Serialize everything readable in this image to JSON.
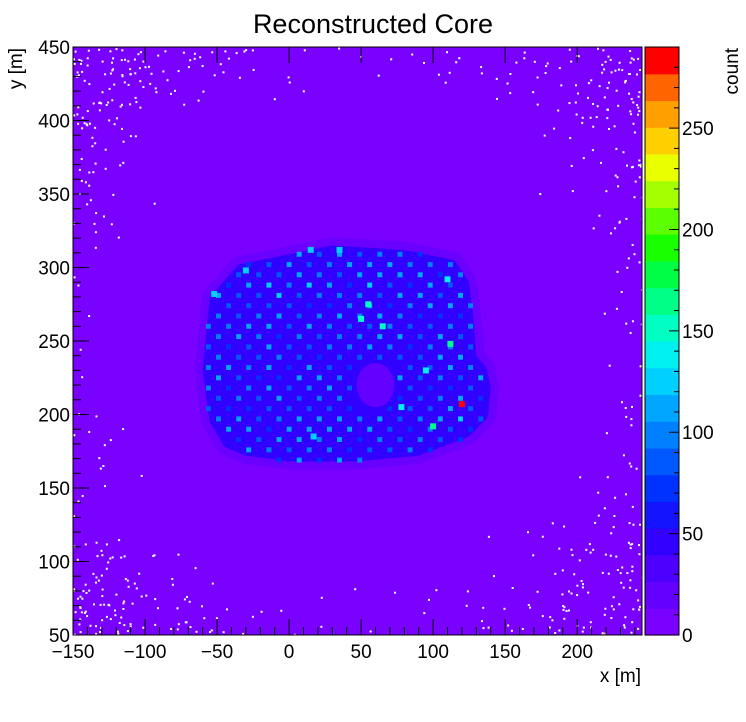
{
  "chart_data": {
    "type": "heatmap",
    "title": "Reconstructed Core",
    "xlabel": "x [m]",
    "ylabel": "y [m]",
    "zlabel": "count",
    "xlim": [
      -150,
      245
    ],
    "ylim": [
      50,
      450
    ],
    "zlim": [
      0,
      290
    ],
    "x_ticks": [
      -150,
      -100,
      -50,
      0,
      50,
      100,
      150,
      200
    ],
    "y_ticks": [
      50,
      100,
      150,
      200,
      250,
      300,
      350,
      400,
      450
    ],
    "z_ticks": [
      0,
      50,
      100,
      150,
      200,
      250
    ],
    "x_tick_labels": [
      "−150",
      "−100",
      "−50",
      "0",
      "50",
      "100",
      "150",
      "200"
    ],
    "y_tick_labels": [
      "50",
      "100",
      "150",
      "200",
      "250",
      "300",
      "350",
      "400",
      "450"
    ],
    "z_tick_labels": [
      "0",
      "50",
      "100",
      "150",
      "200",
      "250"
    ],
    "background_count": 3,
    "array_footprint_polygon": [
      [
        -55,
        280
      ],
      [
        -35,
        302
      ],
      [
        30,
        315
      ],
      [
        80,
        312
      ],
      [
        115,
        305
      ],
      [
        125,
        290
      ],
      [
        128,
        265
      ],
      [
        130,
        240
      ],
      [
        137,
        232
      ],
      [
        140,
        218
      ],
      [
        138,
        198
      ],
      [
        125,
        185
      ],
      [
        90,
        172
      ],
      [
        45,
        168
      ],
      [
        0,
        168
      ],
      [
        -30,
        172
      ],
      [
        -45,
        178
      ],
      [
        -55,
        195
      ],
      [
        -60,
        230
      ]
    ],
    "array_footprint_count": 40,
    "array_halo_count": 18,
    "central_hole": {
      "x": 60,
      "y": 220,
      "rx": 13,
      "ry": 15,
      "count": 14
    },
    "hotspots": [
      {
        "x": 120,
        "y": 207,
        "count": 285
      },
      {
        "x": 112,
        "y": 248,
        "count": 165
      },
      {
        "x": 100,
        "y": 192,
        "count": 160
      },
      {
        "x": 55,
        "y": 275,
        "count": 150
      },
      {
        "x": 50,
        "y": 265,
        "count": 145
      },
      {
        "x": 65,
        "y": 260,
        "count": 145
      },
      {
        "x": 78,
        "y": 205,
        "count": 140
      },
      {
        "x": 110,
        "y": 292,
        "count": 140
      },
      {
        "x": 35,
        "y": 312,
        "count": 130
      },
      {
        "x": 15,
        "y": 312,
        "count": 130
      },
      {
        "x": 95,
        "y": 230,
        "count": 135
      },
      {
        "x": 17,
        "y": 185,
        "count": 130
      },
      {
        "x": -30,
        "y": 298,
        "count": 125
      },
      {
        "x": -52,
        "y": 282,
        "count": 120
      }
    ],
    "detector_grid": {
      "row_spacing_y": 7,
      "column_spacing_x": 14,
      "count_range": [
        70,
        120
      ]
    },
    "colorbar": {
      "levels": 20,
      "colors": [
        "#7a00ff",
        "#6400ff",
        "#4e00ff",
        "#3200ff",
        "#1414ff",
        "#0032ff",
        "#0058ff",
        "#0080ff",
        "#00a6ff",
        "#00d0ff",
        "#00f0f0",
        "#00ffc2",
        "#00ff86",
        "#00ff44",
        "#18ff00",
        "#5cff00",
        "#a6ff00",
        "#eaff00",
        "#ffd000",
        "#ffa000",
        "#ff6400",
        "#ff0000"
      ]
    }
  }
}
